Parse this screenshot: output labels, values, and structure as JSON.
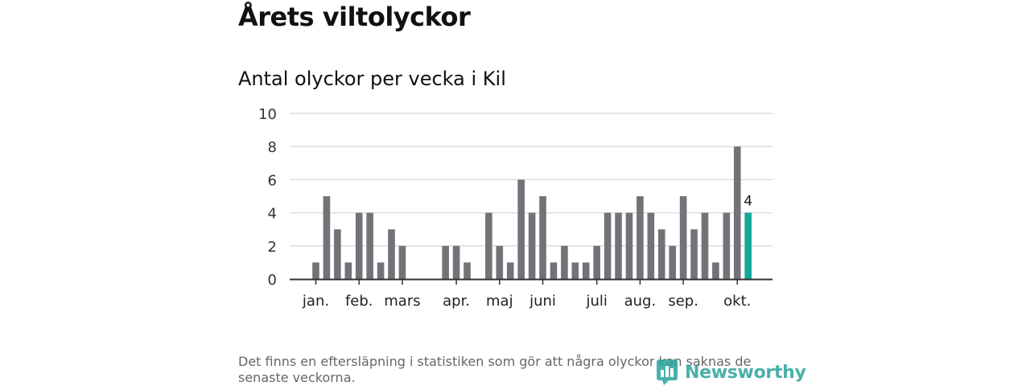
{
  "header": {
    "title": "Årets viltolyckor"
  },
  "chart_data": {
    "type": "bar",
    "title": "Antal olyckor per vecka i Kil",
    "xlabel": "",
    "ylabel": "",
    "ylim": [
      0,
      10
    ],
    "yticks": [
      0,
      2,
      4,
      6,
      8,
      10
    ],
    "grid": true,
    "weeks": [
      1,
      2,
      3,
      4,
      5,
      6,
      7,
      8,
      9,
      10,
      11,
      12,
      13,
      14,
      15,
      16,
      17,
      18,
      19,
      20,
      21,
      22,
      23,
      24,
      25,
      26,
      27,
      28,
      29,
      30,
      31,
      32,
      33,
      34,
      35,
      36,
      37,
      38,
      39,
      40,
      41
    ],
    "values": [
      1,
      5,
      3,
      1,
      4,
      4,
      1,
      3,
      2,
      0,
      0,
      0,
      2,
      2,
      1,
      0,
      4,
      2,
      1,
      6,
      4,
      5,
      1,
      2,
      1,
      1,
      2,
      4,
      4,
      4,
      5,
      4,
      3,
      2,
      5,
      3,
      4,
      1,
      4,
      8,
      4
    ],
    "month_ticks": [
      {
        "label": "jan.",
        "week": 1
      },
      {
        "label": "feb.",
        "week": 5
      },
      {
        "label": "mars",
        "week": 9
      },
      {
        "label": "apr.",
        "week": 14
      },
      {
        "label": "maj",
        "week": 18
      },
      {
        "label": "juni",
        "week": 22
      },
      {
        "label": "juli",
        "week": 27
      },
      {
        "label": "aug.",
        "week": 31
      },
      {
        "label": "sep.",
        "week": 35
      },
      {
        "label": "okt.",
        "week": 40
      }
    ],
    "highlight": {
      "week": 41,
      "value": 4,
      "label": "4"
    },
    "colors": {
      "bar": "#737278",
      "highlight": "#12a89a",
      "grid": "#dddddd",
      "axis": "#333333"
    }
  },
  "footer": {
    "note": "Det finns en eftersläpning i statistiken som gör att några olyckor kan saknas de senaste veckorna.",
    "brand": "Newsworthy",
    "brand_icon": "newsworthy-chart-logo-icon",
    "brand_color": "#2aa39b"
  }
}
